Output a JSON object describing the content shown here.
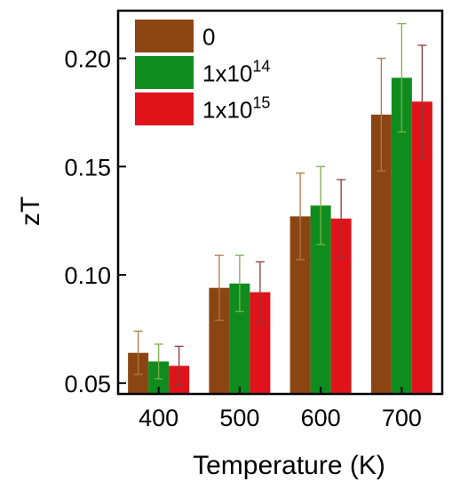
{
  "chart_data": {
    "type": "bar",
    "xlabel": "Temperature (K)",
    "ylabel": "zT",
    "categories": [
      "400",
      "500",
      "600",
      "700"
    ],
    "ylim": [
      0.045,
      0.222
    ],
    "yticks": [
      {
        "value": 0.05,
        "label": "0.05"
      },
      {
        "value": 0.1,
        "label": "0.10"
      },
      {
        "value": 0.15,
        "label": "0.15"
      },
      {
        "value": 0.2,
        "label": "0.20"
      }
    ],
    "grid": false,
    "legend_position": "top-left",
    "series": [
      {
        "name": "0",
        "name_base": "0",
        "name_exp": "",
        "color": "#8B4513",
        "errcolor": "#b07a4a",
        "values": [
          0.064,
          0.094,
          0.127,
          0.174
        ],
        "errors": [
          0.01,
          0.015,
          0.02,
          0.026
        ]
      },
      {
        "name": "1x10^14",
        "name_base": "1x10",
        "name_exp": "14",
        "color": "#0E8C1E",
        "errcolor": "#7fae4a",
        "values": [
          0.06,
          0.096,
          0.132,
          0.191
        ],
        "errors": [
          0.008,
          0.013,
          0.018,
          0.025
        ]
      },
      {
        "name": "1x10^15",
        "name_base": "1x10",
        "name_exp": "15",
        "color": "#E0131B",
        "errcolor": "#8a3a3a",
        "values": [
          0.058,
          0.092,
          0.126,
          0.18
        ],
        "errors": [
          0.009,
          0.014,
          0.018,
          0.026
        ]
      }
    ]
  }
}
